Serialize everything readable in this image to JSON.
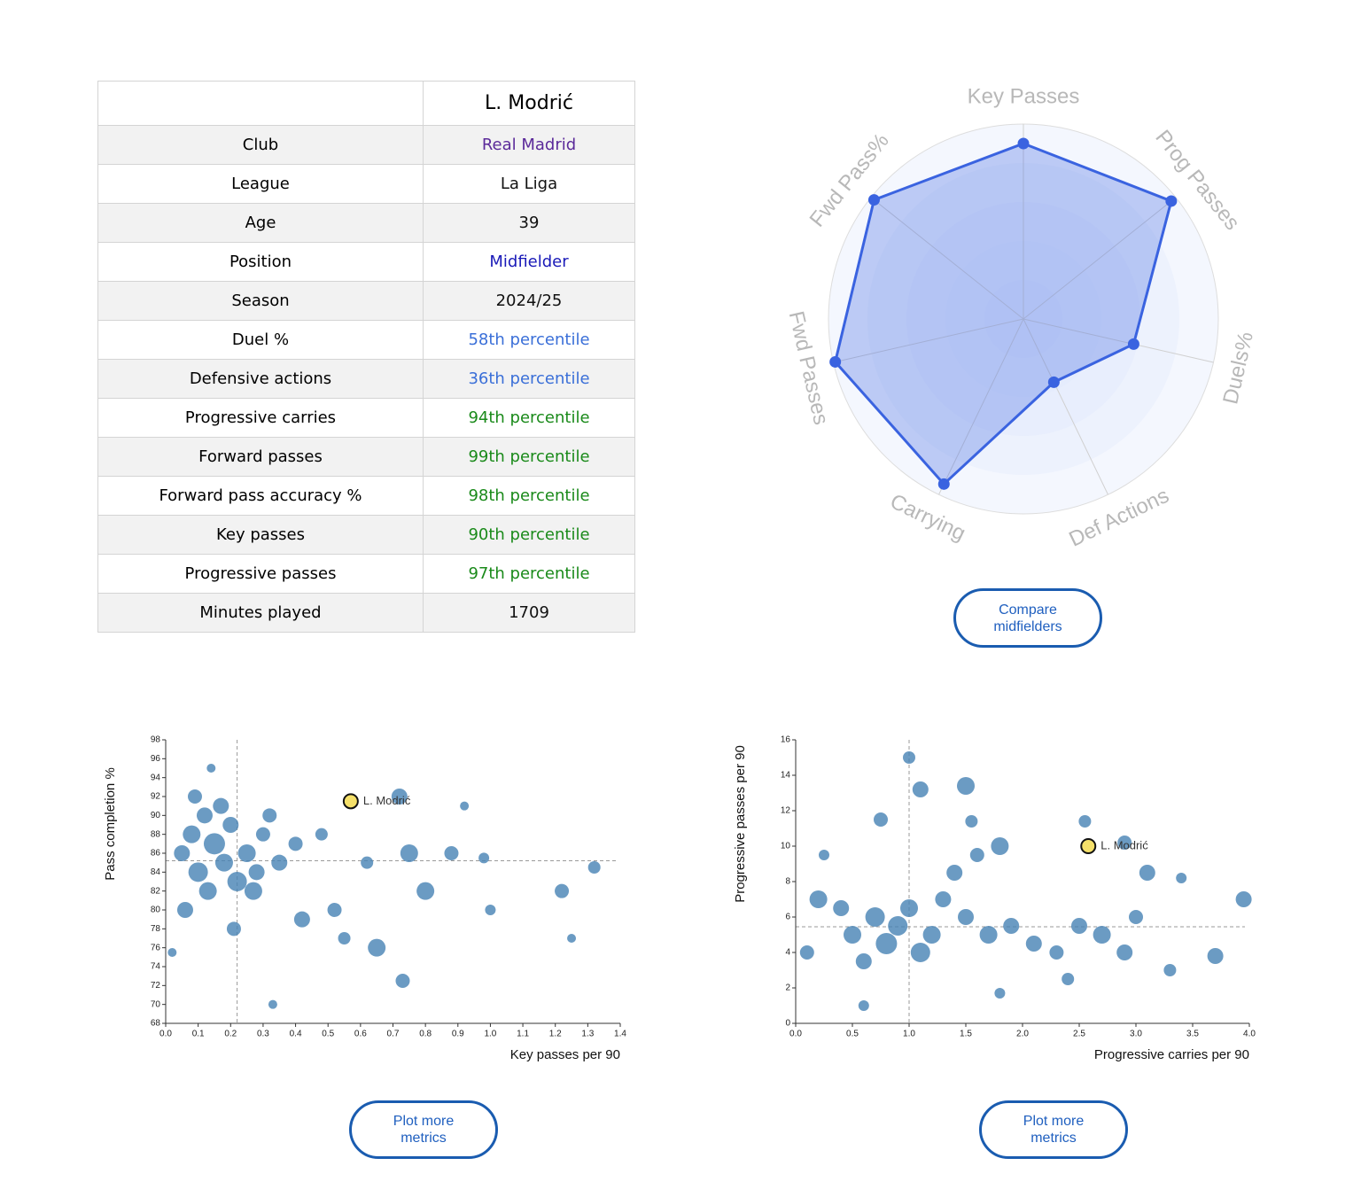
{
  "table": {
    "player": "L. Modrić",
    "rows": [
      [
        "Club",
        "Real Madrid"
      ],
      [
        "League",
        "La Liga"
      ],
      [
        "Age",
        39
      ],
      [
        "Position",
        "Midfielder"
      ],
      [
        "Season",
        "2024/25"
      ],
      [
        "Duel %",
        "58th percentile"
      ],
      [
        "Defensive actions",
        "36th percentile"
      ],
      [
        "Progressive carries",
        "94th percentile"
      ],
      [
        "Forward passes",
        "99th percentile"
      ],
      [
        "Forward pass accuracy %",
        "98th percentile"
      ],
      [
        "Key passes",
        "90th percentile"
      ],
      [
        "Progressive passes",
        "97th percentile"
      ],
      [
        "Minutes played",
        1709
      ]
    ],
    "value_colors": [
      "#5b2a9a",
      "#111111",
      "#111111",
      "#1a1ab8",
      "#111111",
      "#3a6fd8",
      "#3a6fd8",
      "#1a8a1a",
      "#1a8a1a",
      "#1a8a1a",
      "#1a8a1a",
      "#1a8a1a",
      "#111111"
    ]
  },
  "buttons": [
    "Compare midfielders",
    "Plot more metrics",
    "Plot more metrics"
  ],
  "chart_data": [
    {
      "type": "radar",
      "categories": [
        "Key Passes",
        "Prog Passes",
        "Duels%",
        "Def Actions",
        "Carrying",
        "Fwd Passes",
        "Fwd Pass%"
      ],
      "values": [
        90,
        97,
        58,
        36,
        94,
        99,
        98
      ],
      "rlim": [
        0,
        100
      ],
      "color": "#3a63e0"
    },
    {
      "type": "scatter",
      "x_label": "Key passes per 90",
      "y_label": "Pass completion %",
      "color": "#4682b4",
      "x": [
        0.05,
        0.08,
        0.1,
        0.12,
        0.15,
        0.18,
        0.2,
        0.22,
        0.25,
        0.28,
        0.3,
        0.06,
        0.09,
        0.13,
        0.17,
        0.21,
        0.27,
        0.32,
        0.35,
        0.4,
        0.42,
        0.48,
        0.52,
        0.55,
        0.62,
        0.65,
        0.72,
        0.75,
        0.8,
        0.88,
        0.92,
        0.98,
        1.0,
        1.22,
        1.25,
        1.32,
        0.14,
        0.33,
        0.73,
        0.02
      ],
      "values": [
        86,
        88,
        84,
        90,
        87,
        85,
        89,
        83,
        86,
        84,
        88,
        80,
        92,
        82,
        91,
        78,
        82,
        90,
        85,
        87,
        79,
        88,
        80,
        77,
        85,
        76,
        92,
        86,
        82,
        86,
        91,
        85.5,
        80,
        82,
        77,
        84.5,
        95,
        70,
        72.5,
        75.5
      ],
      "sizes": [
        9,
        10,
        11,
        9,
        12,
        10,
        9,
        11,
        10,
        9,
        8,
        9,
        8,
        10,
        9,
        8,
        10,
        8,
        9,
        8,
        9,
        7,
        8,
        7,
        7,
        10,
        9,
        10,
        10,
        8,
        5,
        6,
        6,
        8,
        5,
        7,
        5,
        5,
        8,
        5
      ],
      "xlim": [
        0,
        1.4
      ],
      "xticks": [
        {
          "value": 0,
          "label": "0.0"
        },
        0.1,
        0.2,
        0.3,
        0.4,
        0.5,
        0.6,
        0.7,
        0.8,
        0.9,
        {
          "value": 1,
          "label": "1.0"
        },
        1.1,
        1.2,
        1.3,
        1.4
      ],
      "ylim": [
        68,
        98
      ],
      "yticks": [
        68,
        70,
        72,
        74,
        76,
        78,
        80,
        82,
        84,
        86,
        88,
        90,
        92,
        94,
        96,
        98
      ],
      "reference_lines": {
        "x": 0.22,
        "y": 85.2
      },
      "highlight": {
        "name": "L. Modrić",
        "x": 0.57,
        "y": 91.5,
        "color": "#f5e06a"
      }
    },
    {
      "type": "scatter",
      "x_label": "Progressive carries per 90",
      "y_label": "Progressive passes per 90",
      "color": "#4682b4",
      "x": [
        0.5,
        0.7,
        0.8,
        0.9,
        1.0,
        1.1,
        1.2,
        1.3,
        0.4,
        0.6,
        1.5,
        1.7,
        1.9,
        0.2,
        0.1,
        1.4,
        1.6,
        1.8,
        2.1,
        2.3,
        2.5,
        2.7,
        2.9,
        3.0,
        3.3,
        3.4,
        3.7,
        3.95,
        1.0,
        1.1,
        1.5,
        1.55,
        0.75,
        2.55,
        2.9,
        3.1,
        0.6,
        1.8,
        2.4,
        0.25
      ],
      "values": [
        5,
        6,
        4.5,
        5.5,
        6.5,
        4,
        5,
        7,
        6.5,
        3.5,
        6,
        5,
        5.5,
        7,
        4,
        8.5,
        9.5,
        10,
        4.5,
        4,
        5.5,
        5,
        4,
        6,
        3,
        8.2,
        3.8,
        7,
        15,
        13.2,
        13.4,
        11.4,
        11.5,
        11.4,
        10.2,
        8.5,
        1,
        1.7,
        2.5,
        9.5
      ],
      "sizes": [
        10,
        11,
        12,
        11,
        10,
        11,
        10,
        9,
        9,
        9,
        9,
        10,
        9,
        10,
        8,
        9,
        8,
        10,
        9,
        8,
        9,
        10,
        9,
        8,
        7,
        6,
        9,
        9,
        7,
        9,
        10,
        7,
        8,
        7,
        8,
        9,
        6,
        6,
        7,
        6
      ],
      "xlim": [
        0,
        4
      ],
      "xticks": [
        {
          "value": 0,
          "label": "0.0"
        },
        0.5,
        {
          "value": 1,
          "label": "1.0"
        },
        1.5,
        {
          "value": 2,
          "label": "2.0"
        },
        2.5,
        {
          "value": 3,
          "label": "3.0"
        },
        3.5,
        {
          "value": 4,
          "label": "4.0"
        }
      ],
      "ylim": [
        0,
        16
      ],
      "yticks": [
        0,
        2,
        4,
        6,
        8,
        10,
        12,
        14,
        16
      ],
      "reference_lines": {
        "x": 1.0,
        "y": 5.45
      },
      "highlight": {
        "name": "L. Modrić",
        "x": 2.58,
        "y": 10,
        "color": "#f5e06a"
      }
    }
  ]
}
